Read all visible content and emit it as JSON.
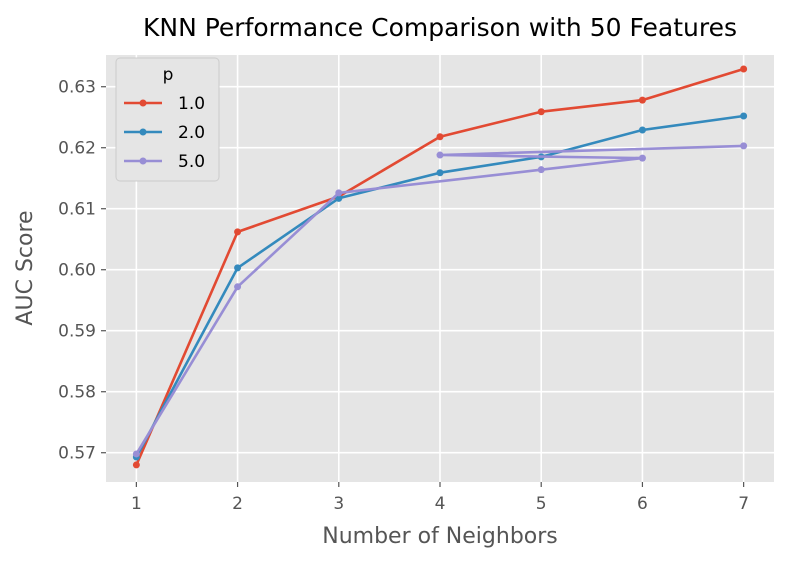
{
  "chart_data": {
    "type": "line",
    "title": "KNN Performance Comparison with 50 Features",
    "xlabel": "Number of Neighbors",
    "ylabel": "AUC Score",
    "xlim": [
      0.7,
      7.3
    ],
    "ylim": [
      0.5652,
      0.6352
    ],
    "x_ticks": [
      "1",
      "2",
      "3",
      "4",
      "5",
      "6",
      "7"
    ],
    "y_ticks": [
      "0.57",
      "0.58",
      "0.59",
      "0.60",
      "0.61",
      "0.62",
      "0.63"
    ],
    "y_tick_values": [
      0.57,
      0.58,
      0.59,
      0.6,
      0.61,
      0.62,
      0.63
    ],
    "grid": true,
    "legend": {
      "title": "p",
      "placement": "top-left"
    },
    "series": [
      {
        "name": "1.0",
        "color": "#e24a33",
        "x": [
          1,
          2,
          3,
          4,
          5,
          6,
          7
        ],
        "values": [
          0.568,
          0.6062,
          0.612,
          0.6218,
          0.6259,
          0.6278,
          0.6329
        ]
      },
      {
        "name": "2.0",
        "color": "#348abd",
        "x": [
          1,
          2,
          3,
          4,
          5,
          6,
          7
        ],
        "values": [
          0.5693,
          0.6003,
          0.6117,
          0.6159,
          0.6185,
          0.6229,
          0.6252
        ]
      },
      {
        "name": "5.0",
        "color": "#988ed5",
        "x": [
          1,
          2,
          3,
          5,
          6,
          4,
          7
        ],
        "values": [
          0.5698,
          0.5972,
          0.6126,
          0.6164,
          0.6183,
          0.6188,
          0.6203
        ]
      }
    ]
  }
}
